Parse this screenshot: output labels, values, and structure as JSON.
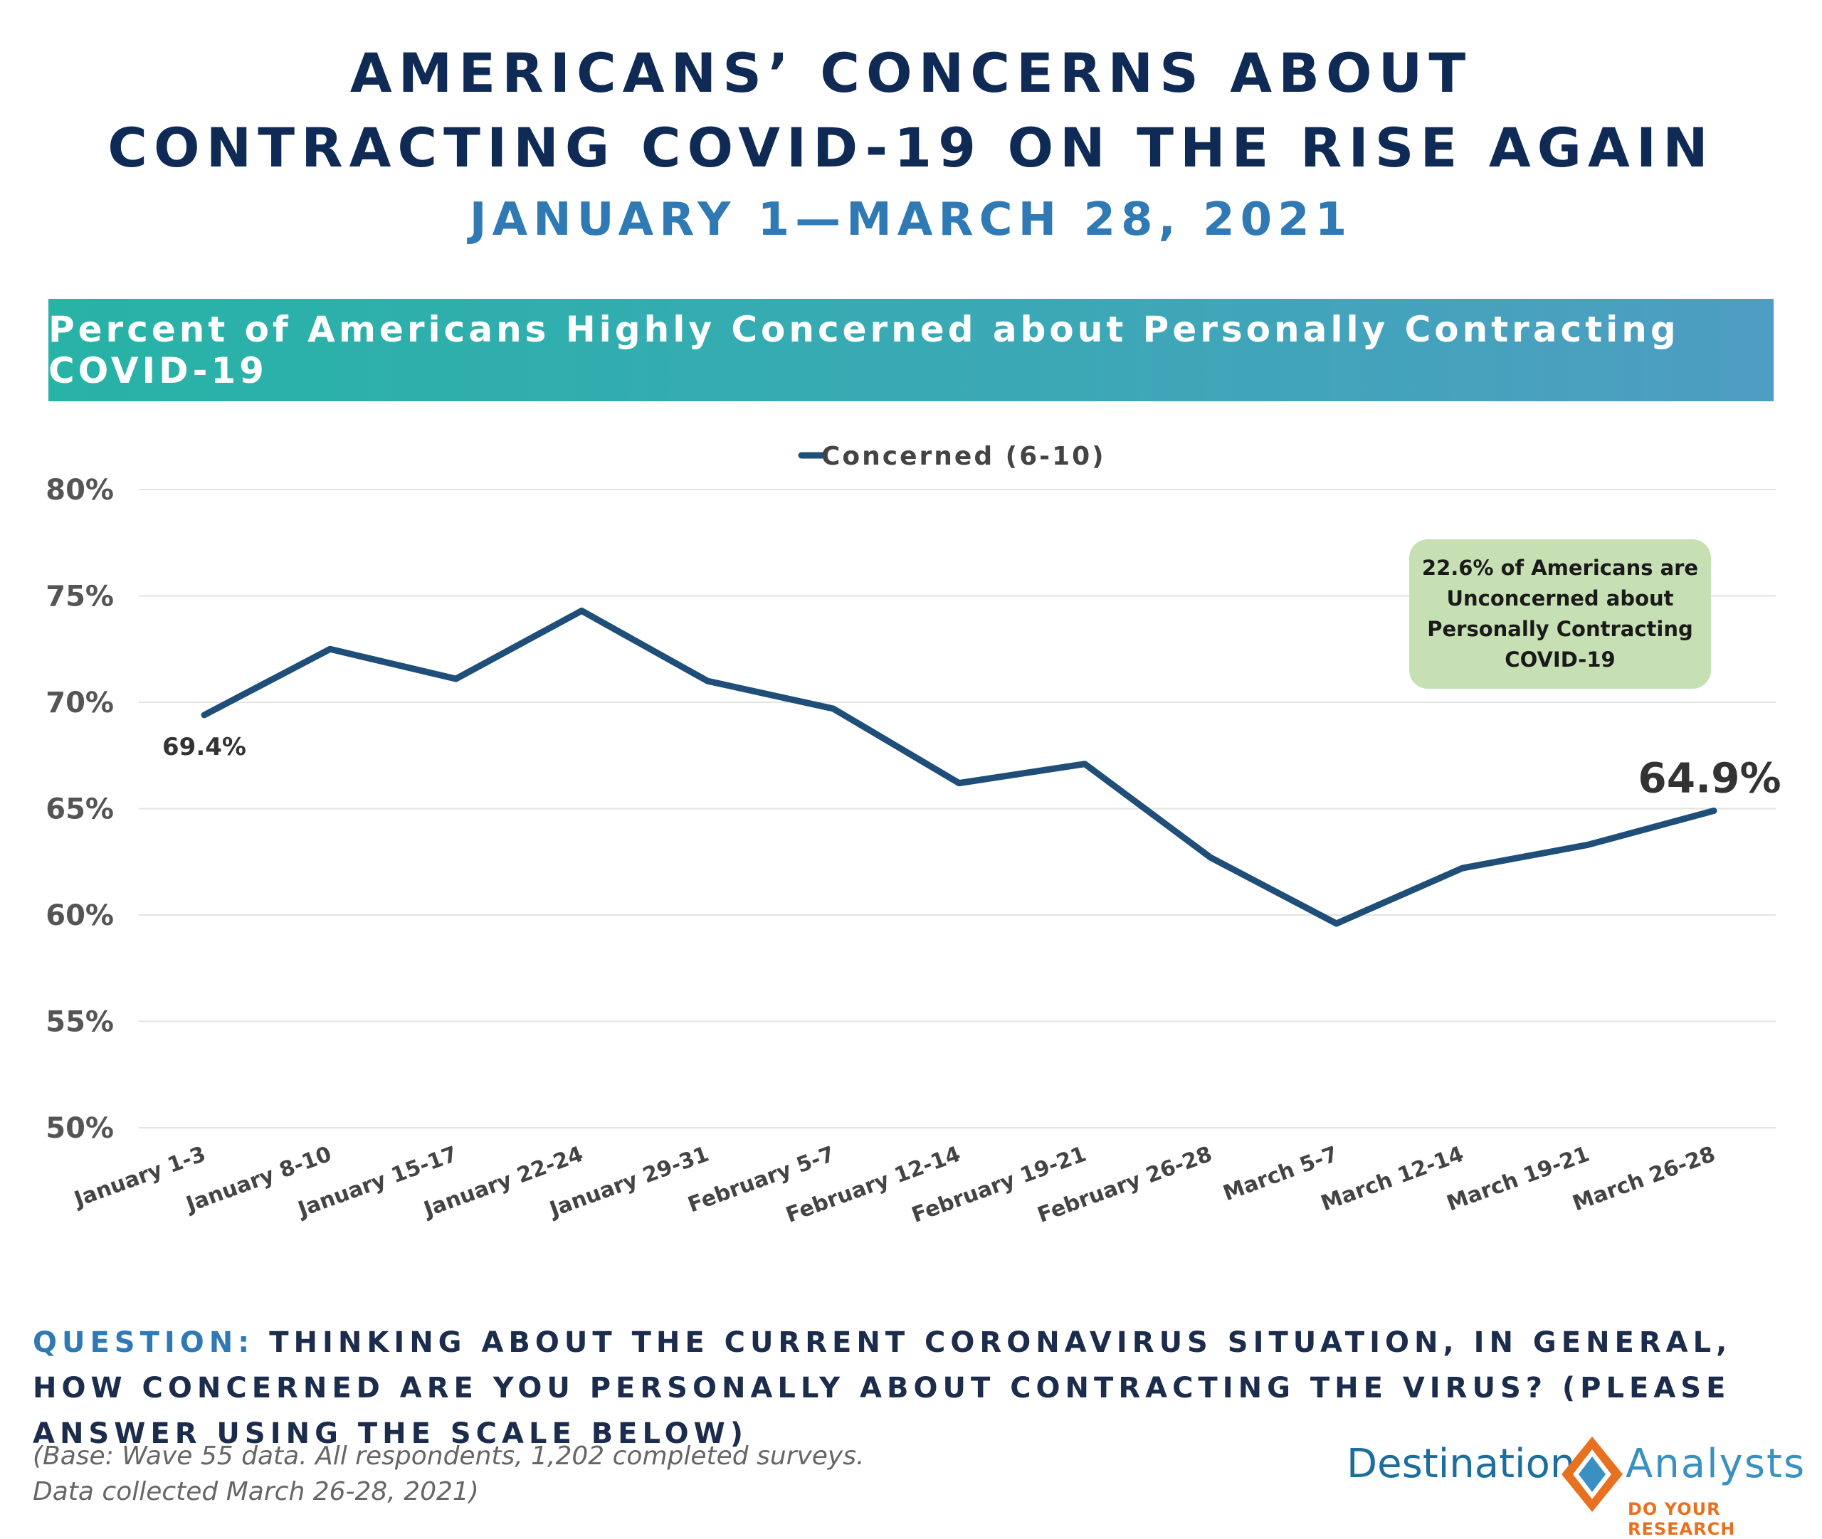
{
  "header": {
    "title_line1": "AMERICANS’ CONCERNS ABOUT",
    "title_line2": "CONTRACTING COVID-19 ON THE RISE AGAIN",
    "subtitle": "JANUARY 1—MARCH 28, 2021"
  },
  "banner": {
    "text": "Percent of Americans Highly Concerned about Personally Contracting COVID-19"
  },
  "chart_data": {
    "type": "line",
    "title": "Percent of Americans Highly Concerned about Personally Contracting COVID-19",
    "categories": [
      "January 1-3",
      "January 8-10",
      "January 15-17",
      "January 22-24",
      "January 29-31",
      "February 5-7",
      "February 12-14",
      "February 19-21",
      "February 26-28",
      "March 5-7",
      "March 12-14",
      "March 19-21",
      "March 26-28"
    ],
    "series": [
      {
        "name": "Concerned (6-10)",
        "values": [
          69.4,
          72.5,
          71.1,
          74.3,
          71.0,
          69.7,
          66.2,
          67.1,
          62.7,
          59.6,
          62.2,
          63.3,
          64.9
        ],
        "color": "#1f4e79"
      }
    ],
    "ylim": [
      50,
      80
    ],
    "yticks": [
      50,
      55,
      60,
      65,
      70,
      75,
      80
    ],
    "ytick_labels": [
      "50%",
      "55%",
      "60%",
      "65%",
      "70%",
      "75%",
      "80%"
    ],
    "xlabel": "",
    "ylabel": "",
    "legend": "top-center",
    "grid": true,
    "data_labels": {
      "first": "69.4%",
      "last": "64.9%"
    },
    "annotation": "22.6% of Americans are Unconcerned about Personally Contracting COVID-19"
  },
  "footer": {
    "question_label": "QUESTION:",
    "question_text": "THINKING ABOUT THE CURRENT CORONAVIRUS SITUATION, IN GENERAL, HOW CONCERNED ARE YOU PERSONALLY ABOUT CONTRACTING THE VIRUS? (PLEASE ANSWER USING THE SCALE BELOW)",
    "base_line1": "(Base: Wave 55 data. All respondents, 1,202 completed surveys.",
    "base_line2": "Data collected March 26-28, 2021)"
  },
  "logo": {
    "left": "Destination",
    "right": "Analysts",
    "tagline": "DO YOUR RESEARCH",
    "colors": {
      "blue": "#1d6e9e",
      "orange": "#e8711f"
    }
  }
}
